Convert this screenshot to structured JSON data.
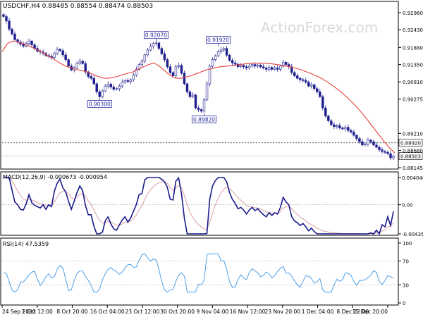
{
  "chart_data": {
    "type": "candlestick",
    "symbol_header": "USDCHF,H4  0.88485 0.88554 0.88474 0.88503",
    "watermark": "ActionForex.com",
    "colors": {
      "candle": "#1f1f8f",
      "moving_average": "#e8413c",
      "macd_line": "#1a1a8c",
      "macd_signal": "#d9a0a0",
      "rsi_line": "#4f9fe8",
      "grid": "#bfbfbf",
      "axis": "#000000",
      "label_border": "#2a2aa0"
    },
    "price_axis": {
      "ylim": [
        0.88145,
        0.9296
      ],
      "ticks": [
        "0.92960",
        "0.92430",
        "0.91880",
        "0.91350",
        "0.90810",
        "0.90275",
        "0.89210",
        "0.88680",
        "0.88145"
      ]
    },
    "reference_line": {
      "value": 0.8892,
      "label": "0.88920",
      "style": "dotted"
    },
    "current_price": {
      "value": 0.88503,
      "label": "0.88503"
    },
    "annotations": [
      {
        "label": "0.90300",
        "value": 0.903,
        "bar": 34
      },
      {
        "label": "0.92070",
        "value": 0.9207,
        "bar": 54
      },
      {
        "label": "0.89820",
        "value": 0.8982,
        "bar": 71
      },
      {
        "label": "0.91920",
        "value": 0.9192,
        "bar": 76
      }
    ],
    "x_axis": {
      "labels": [
        "24 Sep 2020",
        "1 Oct 12:00",
        "8 Oct 20:00",
        "16 Oct 04:00",
        "23 Oct 12:00",
        "30 Oct 20:00",
        "9 Nov 04:00",
        "16 Nov 12:00",
        "23 Nov 20:00",
        "1 Dec 04:00",
        "8 Dec 12:00",
        "15 Dec 20:00"
      ]
    },
    "price_close": [
      0.9284,
      0.927,
      0.9245,
      0.923,
      0.9212,
      0.9205,
      0.9198,
      0.9192,
      0.9201,
      0.9208,
      0.9196,
      0.9185,
      0.9176,
      0.9174,
      0.917,
      0.9163,
      0.916,
      0.9157,
      0.917,
      0.9182,
      0.9178,
      0.9165,
      0.915,
      0.913,
      0.9118,
      0.9125,
      0.9138,
      0.9145,
      0.9138,
      0.9112,
      0.9098,
      0.9092,
      0.9075,
      0.905,
      0.9035,
      0.9053,
      0.9068,
      0.9074,
      0.9065,
      0.9058,
      0.906,
      0.9068,
      0.908,
      0.9085,
      0.9082,
      0.9088,
      0.9102,
      0.912,
      0.9135,
      0.9145,
      0.9165,
      0.918,
      0.9192,
      0.92,
      0.9202,
      0.9185,
      0.9168,
      0.915,
      0.9128,
      0.911,
      0.91,
      0.9128,
      0.9132,
      0.9108,
      0.9075,
      0.905,
      0.9035,
      0.904,
      0.9,
      0.8995,
      0.899,
      0.9025,
      0.9075,
      0.913,
      0.915,
      0.9162,
      0.9175,
      0.918,
      0.9185,
      0.9164,
      0.9148,
      0.914,
      0.9136,
      0.9128,
      0.9132,
      0.9128,
      0.9124,
      0.913,
      0.9135,
      0.913,
      0.9133,
      0.9128,
      0.9124,
      0.912,
      0.9126,
      0.912,
      0.9124,
      0.912,
      0.913,
      0.9142,
      0.9135,
      0.9128,
      0.911,
      0.91,
      0.9092,
      0.9088,
      0.9085,
      0.908,
      0.9068,
      0.9072,
      0.906,
      0.905,
      0.9035,
      0.9,
      0.8975,
      0.896,
      0.8948,
      0.8942,
      0.8945,
      0.8938,
      0.8935,
      0.894,
      0.893,
      0.8925,
      0.8915,
      0.8905,
      0.8895,
      0.8885,
      0.8888,
      0.89,
      0.8895,
      0.8885,
      0.8878,
      0.887,
      0.8865,
      0.8862,
      0.8858,
      0.8845,
      0.885
    ],
    "moving_average": [
      0.9175,
      0.92,
      0.9208,
      0.9205,
      0.92,
      0.9193,
      0.9186,
      0.9179,
      0.917,
      0.916,
      0.915,
      0.914,
      0.9131,
      0.9125,
      0.912,
      0.9117,
      0.9113,
      0.9107,
      0.91,
      0.9094,
      0.9092,
      0.9094,
      0.9098,
      0.9103,
      0.9108,
      0.9112,
      0.912,
      0.9128,
      0.9135,
      0.914,
      0.913,
      0.9116,
      0.9102,
      0.9093,
      0.9092,
      0.9095,
      0.91,
      0.9106,
      0.9112,
      0.9118,
      0.9122,
      0.9126,
      0.9129,
      0.913,
      0.9132,
      0.9134,
      0.9136,
      0.9138,
      0.9139,
      0.9139,
      0.9139,
      0.9138,
      0.9136,
      0.9134,
      0.9131,
      0.9128,
      0.9124,
      0.9119,
      0.9113,
      0.9107,
      0.91,
      0.9092,
      0.9082,
      0.9071,
      0.9059,
      0.9046,
      0.9031,
      0.9015,
      0.8998,
      0.8979,
      0.8958,
      0.8937,
      0.8916,
      0.8895,
      0.8876,
      0.886
    ],
    "macd": {
      "label": "MACD(12,26,9) -0.000673 -0.000954",
      "ylim": [
        -0.004351,
        0.004048
      ],
      "ticks": [
        "0.004048",
        "0.00",
        "-0.004351"
      ],
      "zero_line": 0
    },
    "rsi": {
      "label": "RSI(14) 47.5359",
      "ylim": [
        0,
        100
      ],
      "ticks": [
        "100",
        "70",
        "30",
        "0"
      ],
      "levels": [
        70,
        30
      ]
    }
  }
}
